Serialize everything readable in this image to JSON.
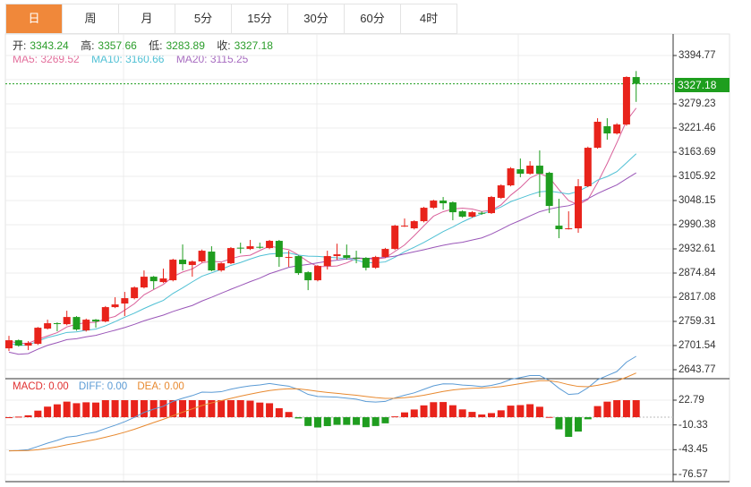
{
  "tabs": [
    {
      "label": "日",
      "active": true
    },
    {
      "label": "周",
      "active": false
    },
    {
      "label": "月",
      "active": false
    },
    {
      "label": "5分",
      "active": false
    },
    {
      "label": "15分",
      "active": false
    },
    {
      "label": "30分",
      "active": false
    },
    {
      "label": "60分",
      "active": false
    },
    {
      "label": "4时",
      "active": false
    }
  ],
  "ohlc": {
    "open_label": "开:",
    "open": "3343.24",
    "high_label": "高:",
    "high": "3357.66",
    "low_label": "低:",
    "low": "3283.89",
    "close_label": "收:",
    "close": "3327.18"
  },
  "ma_legend": {
    "ma5": "MA5: 3269.52",
    "ma10": "MA10: 3160.66",
    "ma20": "MA20: 3115.25"
  },
  "current_price": "3327.18",
  "price_axis": [
    "3394.77",
    "3279.23",
    "3221.46",
    "3163.69",
    "3105.92",
    "3048.15",
    "2990.38",
    "2932.61",
    "2874.84",
    "2817.08",
    "2759.31",
    "2701.54",
    "2643.77"
  ],
  "macd_legend": {
    "macd": "MACD: 0.00",
    "diff": "DIFF: 0.00",
    "dea": "DEA: 0.00"
  },
  "macd_axis": [
    "22.79",
    "-10.33",
    "-43.45",
    "-76.57"
  ],
  "colors": {
    "up": "#e8231b",
    "down": "#1f9d1f",
    "ma5": "#d9609a",
    "ma10": "#4fc0d4",
    "ma20": "#9a56b8",
    "diff": "#5b9bd5",
    "dea": "#e8892f",
    "tab_active": "#f0883a"
  },
  "chart_data": {
    "type": "candlestick",
    "price_range": [
      2643.77,
      3394.77
    ],
    "candles_ohlc": [
      [
        2694.9,
        2714.2,
        2724.9,
        2688.5
      ],
      [
        2714.2,
        2701.4,
        2716,
        2699
      ],
      [
        2701.4,
        2707.8,
        2712.1,
        2690.7
      ],
      [
        2705.6,
        2744.2,
        2746,
        2703
      ],
      [
        2742.0,
        2754.9,
        2763.4,
        2740
      ],
      [
        2755,
        2754,
        2757,
        2735.6
      ],
      [
        2752.7,
        2769.8,
        2784.8,
        2750
      ],
      [
        2769.8,
        2739.9,
        2772,
        2737
      ],
      [
        2737.7,
        2763.4,
        2766,
        2735
      ],
      [
        2763.4,
        2759.1,
        2765,
        2744.2
      ],
      [
        2759.1,
        2793.4,
        2796,
        2757
      ],
      [
        2793.4,
        2799.8,
        2817.0,
        2791
      ],
      [
        2802.0,
        2814.8,
        2829.8,
        2772.0
      ],
      [
        2814.8,
        2840.4,
        2843,
        2812
      ],
      [
        2840.4,
        2866.1,
        2881.1,
        2838
      ],
      [
        2866.1,
        2855.4,
        2868,
        2836.2
      ],
      [
        2853.3,
        2861.9,
        2885.4,
        2851
      ],
      [
        2857.6,
        2906.8,
        2909,
        2855
      ],
      [
        2906.8,
        2896.1,
        2943.2,
        2881.1
      ],
      [
        2894.0,
        2902.5,
        2905,
        2866.1
      ],
      [
        2902.5,
        2928.2,
        2931,
        2900
      ],
      [
        2926.1,
        2881.1,
        2938.9,
        2879
      ],
      [
        2881.1,
        2898.2,
        2900,
        2878
      ],
      [
        2898.2,
        2934.6,
        2937,
        2896
      ],
      [
        2935.5,
        2934.6,
        2947.5,
        2921.8
      ],
      [
        2932.5,
        2938.9,
        2953.9,
        2930
      ],
      [
        2937.5,
        2936.8,
        2947.5,
        2933
      ],
      [
        2934.6,
        2951.8,
        2954,
        2932
      ],
      [
        2951.8,
        2913.2,
        2954,
        2889.7
      ],
      [
        2912.5,
        2913.2,
        2928.2,
        2889.7
      ],
      [
        2915.4,
        2874.7,
        2917,
        2870.4
      ],
      [
        2876.8,
        2857.6,
        2879,
        2834.0
      ],
      [
        2857.6,
        2891.8,
        2894,
        2855
      ],
      [
        2891.8,
        2915.4,
        2928.2,
        2883.3
      ],
      [
        2915.4,
        2919.6,
        2945,
        2906.8
      ],
      [
        2917.5,
        2911.1,
        2943,
        2906.8
      ],
      [
        2911.5,
        2911.1,
        2928.2,
        2898.2
      ],
      [
        2911.1,
        2887.5,
        2913,
        2881.1
      ],
      [
        2887.5,
        2913.2,
        2916,
        2885
      ],
      [
        2913.2,
        2932.5,
        2935,
        2911
      ],
      [
        2932.5,
        2988.1,
        2990,
        2930
      ],
      [
        2987.5,
        2988.1,
        3005.2,
        2985
      ],
      [
        2981.7,
        2998.8,
        3001,
        2979
      ],
      [
        2998.8,
        3030.9,
        3033,
        2996
      ],
      [
        3030.9,
        3048.0,
        3050,
        3028
      ],
      [
        3048.0,
        3041.6,
        3056.6,
        3026.6
      ],
      [
        3043.8,
        3020.2,
        3046,
        3001.0
      ],
      [
        3022.4,
        3009.5,
        3025,
        3007
      ],
      [
        3009.5,
        3020.2,
        3023,
        3007
      ],
      [
        3018.8,
        3018.1,
        3022,
        3014
      ],
      [
        3018.1,
        3056.6,
        3059,
        3016
      ],
      [
        3054.5,
        3084.4,
        3087,
        3052
      ],
      [
        3084.4,
        3125.1,
        3128,
        3082
      ],
      [
        3122.9,
        3112.2,
        3148.6,
        3103.7
      ],
      [
        3112.2,
        3131.5,
        3142.2,
        3110
      ],
      [
        3131.5,
        3112.2,
        3167.9,
        3056.6
      ],
      [
        3114.4,
        3035.2,
        3117,
        3018.1
      ],
      [
        2988.1,
        2979.6,
        3052.3,
        2958.2
      ],
      [
        2981.0,
        2981.7,
        3022.4,
        2979
      ],
      [
        2981.7,
        3082.3,
        3099.4,
        2971.0
      ],
      [
        3082.3,
        3174.3,
        3177,
        3080
      ],
      [
        3174.3,
        3236.4,
        3244.9,
        3172
      ],
      [
        3225.7,
        3208.5,
        3244.9,
        3193.6
      ],
      [
        3208.5,
        3229.9,
        3233,
        3206
      ],
      [
        3229.9,
        3343.4,
        3345,
        3227
      ],
      [
        3343.24,
        3327.18,
        3357.66,
        3283.89
      ]
    ],
    "macd_range": [
      -90,
      35
    ]
  }
}
